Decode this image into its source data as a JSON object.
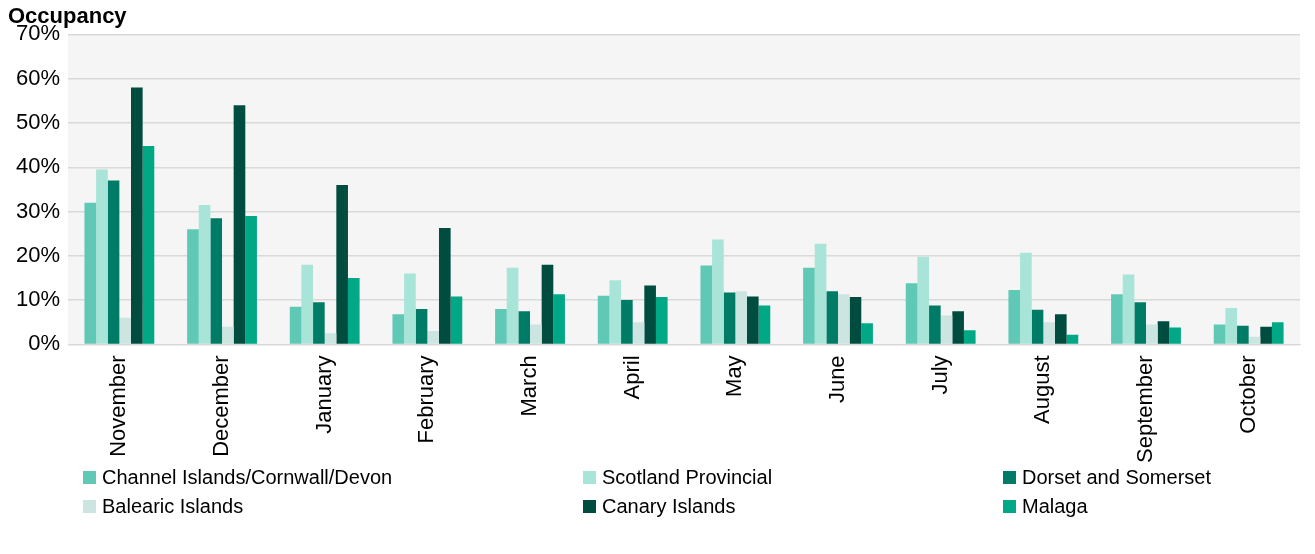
{
  "chart_data": {
    "type": "bar",
    "title": "Occupancy",
    "categories": [
      "November",
      "December",
      "January",
      "February",
      "March",
      "April",
      "May",
      "June",
      "July",
      "August",
      "September",
      "October"
    ],
    "series": [
      {
        "name": "Channel Islands/Cornwall/Devon",
        "color": "#5fc9b5",
        "values": [
          32,
          26,
          8.5,
          6.8,
          8,
          11,
          17.8,
          17.3,
          13.8,
          12.3,
          11.3,
          4.5
        ]
      },
      {
        "name": "Scotland Provincial",
        "color": "#a8e4d8",
        "values": [
          39.5,
          31.5,
          18,
          16,
          17.3,
          14.5,
          23.7,
          22.7,
          19.8,
          20.7,
          15.8,
          8.2
        ]
      },
      {
        "name": "Dorset and Somerset",
        "color": "#007b65",
        "values": [
          37,
          28.5,
          9.5,
          8,
          7.5,
          10,
          11.7,
          12,
          8.8,
          7.8,
          9.5,
          4.2
        ]
      },
      {
        "name": "Balearic Islands",
        "color": "#cde5e1",
        "values": [
          6,
          4,
          2.5,
          3,
          4.5,
          5,
          12,
          11.3,
          6.5,
          5,
          4.5,
          1.7
        ]
      },
      {
        "name": "Canary Islands",
        "color": "#004d40",
        "values": [
          58,
          54,
          36,
          26.3,
          18,
          13.3,
          10.8,
          10.7,
          7.5,
          6.8,
          5.2,
          4
        ]
      },
      {
        "name": "Malaga",
        "color": "#00a886",
        "values": [
          44.8,
          29,
          15,
          10.8,
          11.3,
          10.7,
          8.8,
          4.8,
          3.2,
          2.2,
          3.8,
          5
        ]
      }
    ],
    "ylim": [
      0,
      70
    ],
    "yticks": [
      {
        "value": 0,
        "label": "0%"
      },
      {
        "value": 10,
        "label": "10%"
      },
      {
        "value": 20,
        "label": "20%"
      },
      {
        "value": 30,
        "label": "30%"
      },
      {
        "value": 40,
        "label": "40%"
      },
      {
        "value": 50,
        "label": "50%"
      },
      {
        "value": 60,
        "label": "60%"
      },
      {
        "value": 70,
        "label": "70%"
      }
    ],
    "grid": "y",
    "legend": "bottom"
  }
}
